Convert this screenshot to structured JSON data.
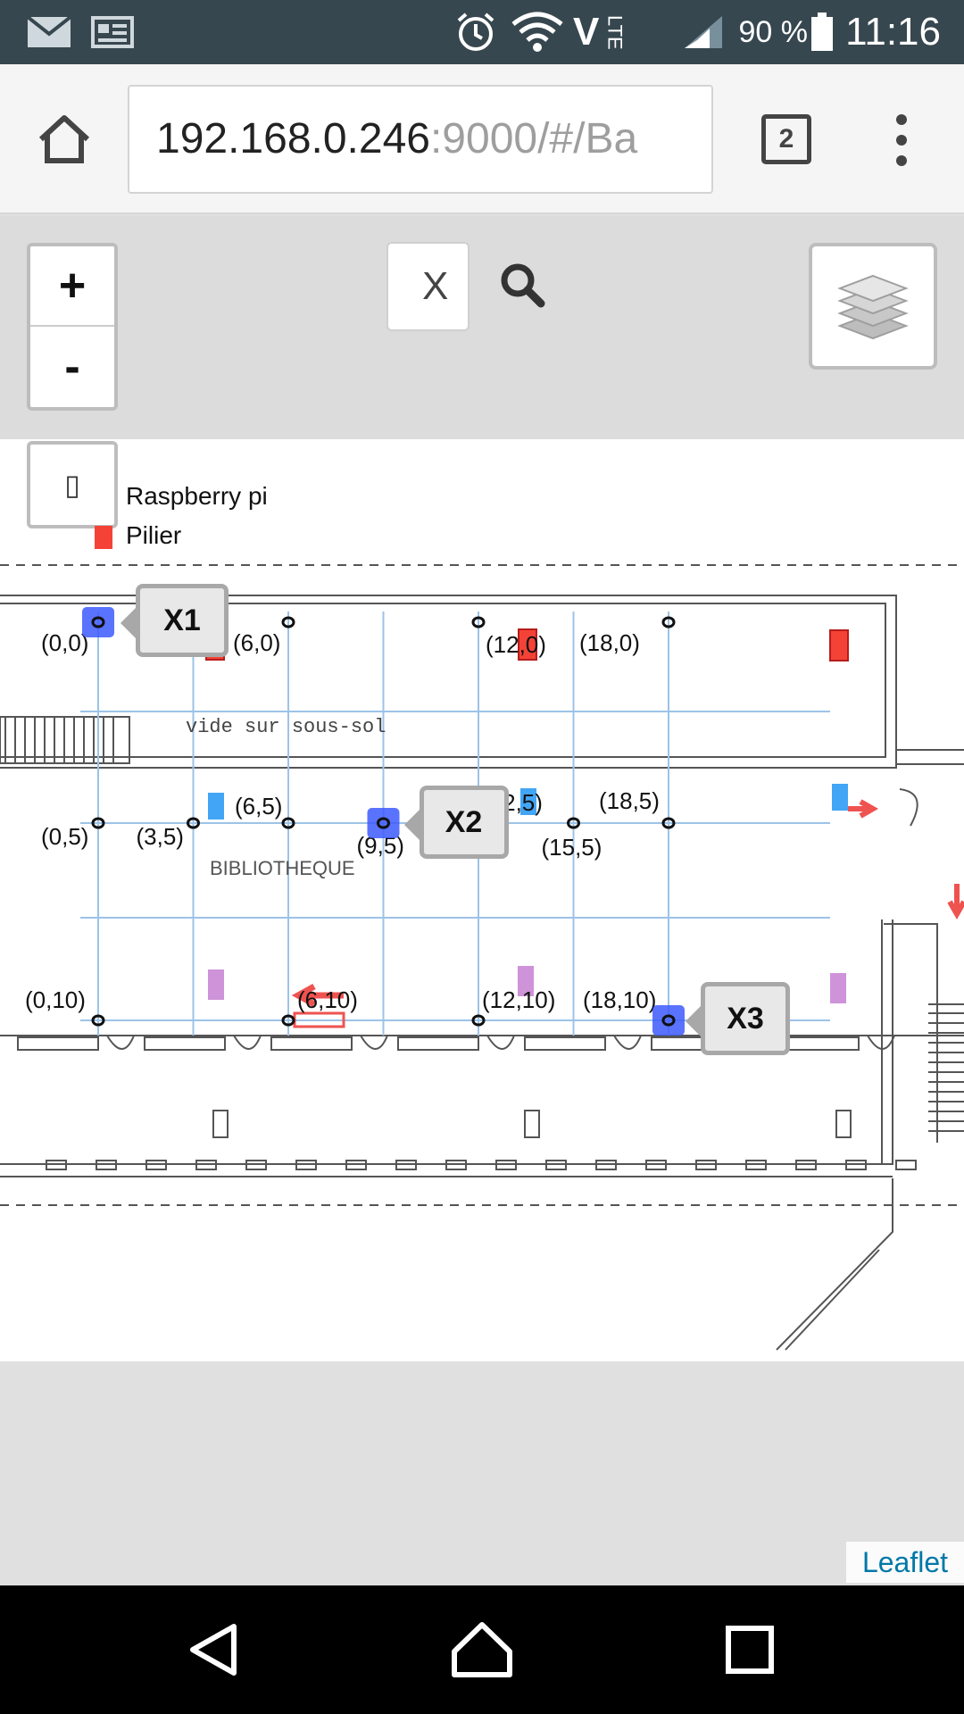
{
  "status_bar": {
    "battery_percent": "90 %",
    "time": "11:16",
    "network": "LTE",
    "icons": [
      "mail-icon",
      "news-icon",
      "alarm-icon",
      "wifi-icon",
      "volte-icon",
      "signal-icon",
      "battery-icon"
    ]
  },
  "browser": {
    "url_host": "192.168.0.246",
    "url_rest": ":9000/#/Ba",
    "tab_count": "2",
    "icons": [
      "home-icon",
      "tabs-icon",
      "menu-dots-icon"
    ]
  },
  "map_controls": {
    "zoom_in_label": "+",
    "zoom_out_label": "-",
    "search_value": "X",
    "legend_toggle_glyph": "▯",
    "icons": [
      "search-icon",
      "layers-icon"
    ]
  },
  "legend": {
    "raspberry_label": "Raspberry pi",
    "pilier_label": "Pilier"
  },
  "plan": {
    "area_label": "vide sur sous-sol",
    "room_label": "BIBLIOTHEQUE"
  },
  "points": [
    {
      "label": "(0,0)",
      "x": 0,
      "y": 0
    },
    {
      "label": "(6,0)",
      "x": 6,
      "y": 0
    },
    {
      "label": "(12,0)",
      "x": 12,
      "y": 0
    },
    {
      "label": "(18,0)",
      "x": 18,
      "y": 0
    },
    {
      "label": "(0,5)",
      "x": 0,
      "y": 5
    },
    {
      "label": "(3,5)",
      "x": 3,
      "y": 5
    },
    {
      "label": "(6,5)",
      "x": 6,
      "y": 5
    },
    {
      "label": "(9,5)",
      "x": 9,
      "y": 5
    },
    {
      "label": "(12,5)",
      "x": 12,
      "y": 5
    },
    {
      "label": "(15,5)",
      "x": 15,
      "y": 5
    },
    {
      "label": "(18,5)",
      "x": 18,
      "y": 5
    },
    {
      "label": "(0,10)",
      "x": 0,
      "y": 10
    },
    {
      "label": "(6,10)",
      "x": 6,
      "y": 10
    },
    {
      "label": "(12,10)",
      "x": 12,
      "y": 10
    },
    {
      "label": "(18,10)",
      "x": 18,
      "y": 10
    }
  ],
  "markers": [
    {
      "label": "X1",
      "x": 0,
      "y": 0
    },
    {
      "label": "X2",
      "x": 9,
      "y": 5
    },
    {
      "label": "X3",
      "x": 18,
      "y": 10
    }
  ],
  "colors": {
    "marker": "#3d5afe",
    "pilier": "#f44336",
    "raspberry": "#42a5f5",
    "purple_zone": "#ce93d8",
    "arrow": "#ef5350"
  },
  "attribution": "Leaflet",
  "nav_bar": {
    "icons": [
      "back-icon",
      "home-nav-icon",
      "recents-icon"
    ]
  }
}
